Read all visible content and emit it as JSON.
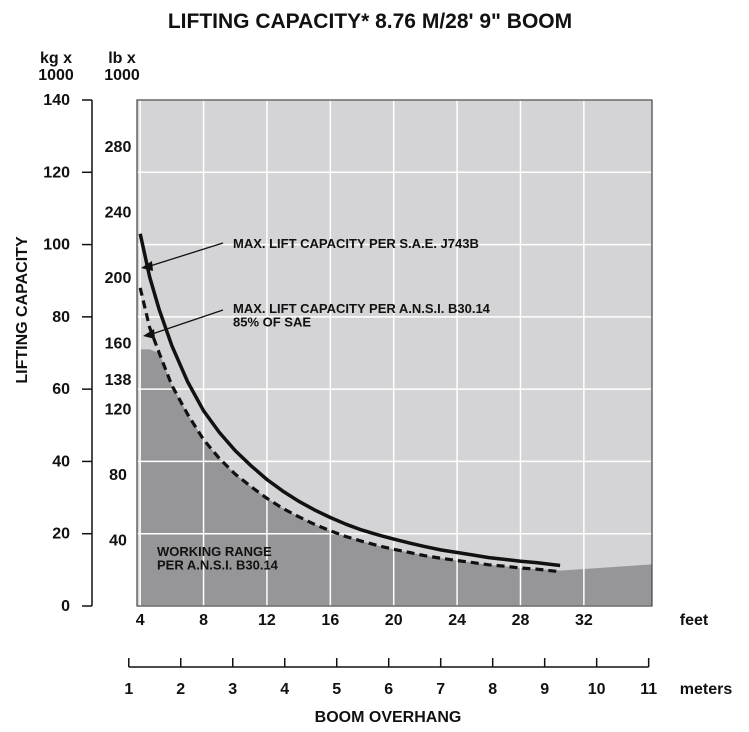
{
  "chart_data": {
    "type": "line",
    "title": "LIFTING CAPACITY*  8.76 M/28' 9\" BOOM",
    "xlabel": "BOOM OVERHANG",
    "ylabel": "LIFTING CAPACITY",
    "y_units": {
      "kg": "kg x\n1000",
      "lb": "lb x\n1000"
    },
    "x_units": {
      "feet": "feet",
      "meters": "meters"
    },
    "x_ticks_feet": [
      "4",
      "8",
      "12",
      "16",
      "20",
      "24",
      "28",
      "32"
    ],
    "x_ticks_meters": [
      "1",
      "2",
      "3",
      "4",
      "5",
      "6",
      "7",
      "8",
      "9",
      "10",
      "11"
    ],
    "y_ticks_kg": [
      "0",
      "20",
      "40",
      "60",
      "80",
      "100",
      "120",
      "140"
    ],
    "y_ticks_lb": [
      "40",
      "80",
      "120",
      "138",
      "160",
      "200",
      "240",
      "280"
    ],
    "xlim_feet": [
      3.8,
      36.3
    ],
    "ylim_kg": [
      0,
      140
    ],
    "grid": true,
    "background_color": "#d4d4d6",
    "working_range_color": "#969698",
    "line_color": "#111111",
    "series": [
      {
        "name": "MAX. LIFT CAPACITY PER S.A.E. J743B",
        "style": "solid",
        "points_x_feet": [
          4,
          4.6,
          5.2,
          6,
          7,
          8,
          9,
          10,
          11,
          12,
          13,
          14,
          15,
          16,
          17,
          18,
          19,
          20,
          21,
          22,
          23,
          24,
          25,
          26,
          27,
          28,
          29,
          30.5
        ],
        "points_y_kg": [
          103,
          91,
          82,
          72,
          62,
          54,
          48,
          43,
          38.8,
          35,
          31.8,
          29,
          26.6,
          24.5,
          22.6,
          21,
          19.7,
          18.5,
          17.4,
          16.4,
          15.5,
          14.8,
          14.1,
          13.4,
          12.9,
          12.4,
          12,
          11.2
        ]
      },
      {
        "name": "MAX. LIFT CAPACITY PER A.N.S.I. B30.14\n85% OF SAE",
        "style": "dashed",
        "points_x_feet": [
          4,
          4.6,
          5.2,
          6,
          7,
          8,
          9,
          10,
          11,
          12,
          13,
          14,
          15,
          16,
          17,
          18,
          19,
          20,
          21,
          22,
          23,
          24,
          25,
          26,
          27,
          28,
          29,
          30.5
        ],
        "points_y_kg": [
          88,
          77,
          70,
          61,
          53,
          46,
          40.8,
          36.5,
          33,
          29.8,
          27,
          24.7,
          22.6,
          20.8,
          19.2,
          17.9,
          16.7,
          15.7,
          14.8,
          13.9,
          13.2,
          12.6,
          12,
          11.4,
          11,
          10.5,
          10.2,
          9.5
        ]
      }
    ],
    "working_range": {
      "label": "WORKING RANGE\nPER A.N.S.I. B30.14",
      "boundary_x_feet": [
        4,
        4.6,
        5.2,
        6,
        7,
        8,
        9,
        10,
        11,
        12,
        13,
        14,
        15,
        16,
        17,
        18,
        19,
        20,
        21,
        22,
        23,
        24,
        25,
        26,
        27,
        28,
        29,
        30.5,
        36.3
      ],
      "boundary_y_kg": [
        71,
        71,
        70,
        61,
        53,
        46,
        40.8,
        36.5,
        33,
        29.8,
        27,
        24.7,
        22.6,
        20.8,
        19.2,
        17.9,
        16.7,
        15.7,
        14.8,
        13.9,
        13.2,
        12.6,
        12,
        11.4,
        11,
        10.5,
        10.2,
        9.8,
        11.5
      ]
    }
  }
}
